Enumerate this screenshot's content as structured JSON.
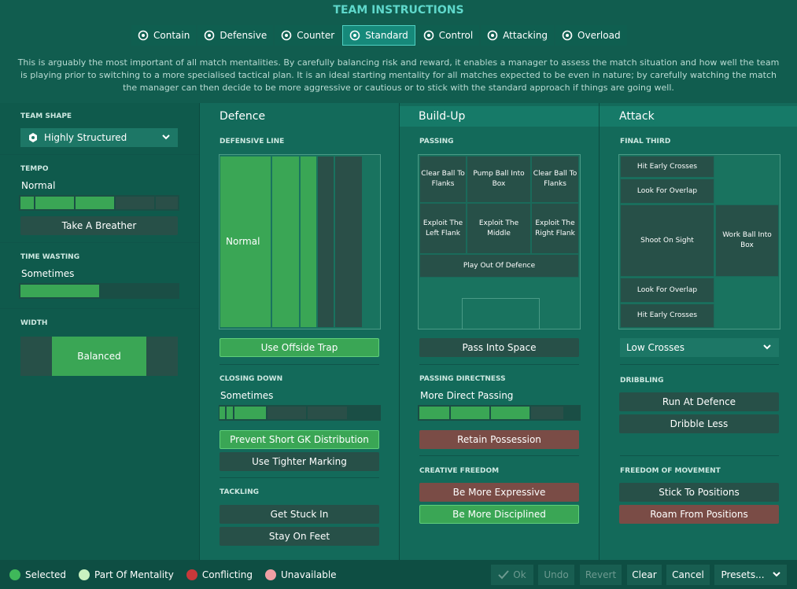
{
  "header": {
    "title": "TEAM INSTRUCTIONS",
    "tabs": [
      {
        "label": "Contain",
        "selected": false
      },
      {
        "label": "Defensive",
        "selected": false
      },
      {
        "label": "Counter",
        "selected": false
      },
      {
        "label": "Standard",
        "selected": true
      },
      {
        "label": "Control",
        "selected": false
      },
      {
        "label": "Attacking",
        "selected": false
      },
      {
        "label": "Overload",
        "selected": false
      }
    ],
    "description": "This is arguably the most important of all match mentalities. By carefully balancing risk and reward, it enables a manager to assess the match situation and how well the team is playing prior to switching to a more specialised tactical plan. It is an ideal starting mentality for all matches expected to be even in nature; by carefully watching the match the manager can then decide to be more aggressive or cautious or to stick with the standard approach if things are going well."
  },
  "team_shape": {
    "label": "TEAM SHAPE",
    "value": "Highly Structured"
  },
  "tempo": {
    "label": "TEMPO",
    "value": "Normal",
    "button": {
      "label": "Take A Breather",
      "state": "none"
    }
  },
  "time_wasting": {
    "label": "TIME WASTING",
    "value": "Sometimes"
  },
  "width": {
    "label": "WIDTH",
    "value": "Balanced"
  },
  "defence": {
    "title": "Defence",
    "defensive_line": {
      "label": "DEFENSIVE LINE",
      "value": "Normal",
      "button": {
        "label": "Use Offside Trap",
        "state": "selected"
      }
    },
    "closing_down": {
      "label": "CLOSING DOWN",
      "value": "Sometimes",
      "buttons": [
        {
          "label": "Prevent Short GK Distribution",
          "state": "selected"
        },
        {
          "label": "Use Tighter Marking",
          "state": "none"
        }
      ]
    },
    "tackling": {
      "label": "TACKLING",
      "buttons": [
        {
          "label": "Get Stuck In",
          "state": "none"
        },
        {
          "label": "Stay On Feet",
          "state": "none"
        }
      ]
    }
  },
  "build_up": {
    "title": "Build-Up",
    "passing": {
      "label": "PASSING",
      "zones": [
        "Clear Ball To Flanks",
        "Pump Ball Into Box",
        "Clear Ball To Flanks",
        "Exploit The Left Flank",
        "Exploit The Middle",
        "Exploit The Right Flank",
        "Play Out Of Defence"
      ],
      "button": {
        "label": "Pass Into Space",
        "state": "none"
      }
    },
    "passing_directness": {
      "label": "PASSING DIRECTNESS",
      "value": "More Direct Passing",
      "button": {
        "label": "Retain Possession",
        "state": "conflicting"
      }
    },
    "creative_freedom": {
      "label": "CREATIVE FREEDOM",
      "buttons": [
        {
          "label": "Be More Expressive",
          "state": "conflicting"
        },
        {
          "label": "Be More Disciplined",
          "state": "selected"
        }
      ]
    }
  },
  "attack": {
    "title": "Attack",
    "final_third": {
      "label": "FINAL THIRD",
      "zones": [
        "Hit Early Crosses",
        "Look For Overlap",
        "Shoot On Sight",
        "Work Ball Into Box",
        "Look For Overlap",
        "Hit Early Crosses"
      ],
      "dropdown": "Low Crosses"
    },
    "dribbling": {
      "label": "DRIBBLING",
      "buttons": [
        {
          "label": "Run At Defence",
          "state": "none"
        },
        {
          "label": "Dribble Less",
          "state": "none"
        }
      ]
    },
    "freedom_of_movement": {
      "label": "FREEDOM OF MOVEMENT",
      "buttons": [
        {
          "label": "Stick To Positions",
          "state": "none"
        },
        {
          "label": "Roam From Positions",
          "state": "conflicting"
        }
      ]
    }
  },
  "legend": [
    {
      "label": "Selected",
      "color": "#3fb85a"
    },
    {
      "label": "Part Of Mentality",
      "color": "#c9f2c0"
    },
    {
      "label": "Conflicting",
      "color": "#c8383a"
    },
    {
      "label": "Unavailable",
      "color": "#f0a0a4"
    }
  ],
  "actions": [
    {
      "label": "Ok",
      "enabled": false
    },
    {
      "label": "Undo",
      "enabled": false
    },
    {
      "label": "Revert",
      "enabled": false
    },
    {
      "label": "Clear",
      "enabled": true
    },
    {
      "label": "Cancel",
      "enabled": true
    },
    {
      "label": "Presets...",
      "enabled": true
    }
  ]
}
